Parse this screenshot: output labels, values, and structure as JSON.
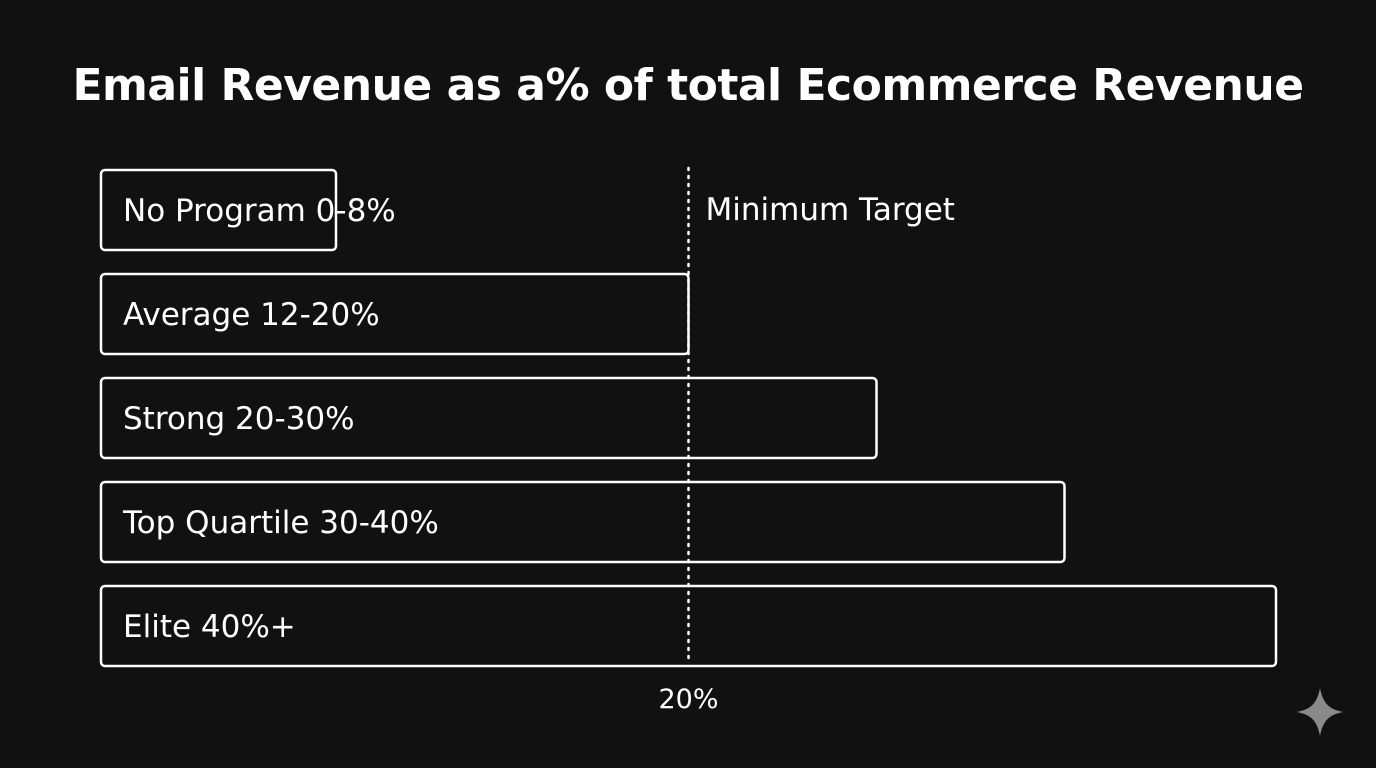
{
  "chart_data": {
    "type": "bar",
    "orientation": "horizontal",
    "title": "Email Revenue as a% of total Ecommerce Revenue",
    "categories": [
      "No Program",
      "Average",
      "Strong",
      "Top Quartile",
      "Elite"
    ],
    "range_labels": [
      "0-8%",
      "12-20%",
      "20-30%",
      "30-40%",
      "40%+"
    ],
    "values": [
      8,
      20,
      26.4,
      32.8,
      40
    ],
    "xlim": [
      0,
      40
    ],
    "reference_line": {
      "value": 20,
      "label": "Minimum Target",
      "tick_label": "20%"
    },
    "grid": false,
    "legend": "none"
  },
  "colors": {
    "background": "#111111",
    "foreground": "#ffffff",
    "sparkle": "#8a8a8a"
  },
  "icons": {
    "corner": "sparkle-icon"
  }
}
